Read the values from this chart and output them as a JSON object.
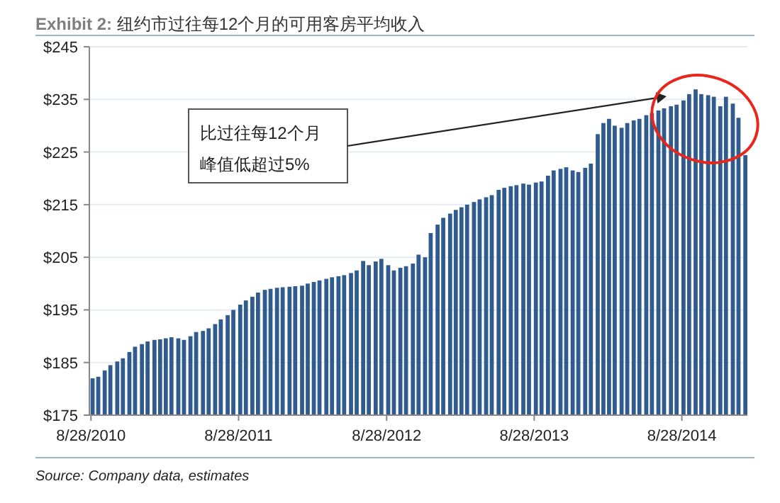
{
  "chart_data": {
    "type": "bar",
    "title": "**Exhibit 2:** 纽约市过往每12个月的可用客房平均收入",
    "x": [
      "2010-09-01",
      "2010-09-15",
      "2010-10-01",
      "2010-10-15",
      "2010-11-01",
      "2010-11-15",
      "2010-12-01",
      "2010-12-15",
      "2011-01-01",
      "2011-01-15",
      "2011-02-01",
      "2011-02-15",
      "2011-03-01",
      "2011-03-15",
      "2011-04-01",
      "2011-04-15",
      "2011-05-01",
      "2011-05-15",
      "2011-06-01",
      "2011-06-15",
      "2011-07-01",
      "2011-07-15",
      "2011-08-01",
      "2011-08-15",
      "2011-09-01",
      "2011-09-15",
      "2011-10-01",
      "2011-10-15",
      "2011-11-01",
      "2011-11-15",
      "2011-12-01",
      "2011-12-15",
      "2012-01-01",
      "2012-01-15",
      "2012-02-01",
      "2012-02-15",
      "2012-03-01",
      "2012-03-15",
      "2012-04-01",
      "2012-04-15",
      "2012-05-01",
      "2012-05-15",
      "2012-06-01",
      "2012-06-15",
      "2012-07-01",
      "2012-07-15",
      "2012-08-01",
      "2012-08-15",
      "2012-09-01",
      "2012-09-15",
      "2012-10-01",
      "2012-10-15",
      "2012-11-01",
      "2012-11-15",
      "2012-12-01",
      "2012-12-15",
      "2013-01-01",
      "2013-01-15",
      "2013-02-01",
      "2013-02-15",
      "2013-03-01",
      "2013-03-15",
      "2013-04-01",
      "2013-04-15",
      "2013-05-01",
      "2013-05-15",
      "2013-06-01",
      "2013-06-15",
      "2013-07-01",
      "2013-07-15",
      "2013-08-01",
      "2013-08-15",
      "2013-09-01",
      "2013-09-15",
      "2013-10-01",
      "2013-10-15",
      "2013-11-01",
      "2013-11-15",
      "2013-12-01",
      "2013-12-15",
      "2014-01-01",
      "2014-01-15",
      "2014-02-01",
      "2014-02-15",
      "2014-03-01",
      "2014-03-15",
      "2014-04-01",
      "2014-04-15",
      "2014-05-01",
      "2014-05-15",
      "2014-06-01",
      "2014-06-15",
      "2014-07-01",
      "2014-07-15",
      "2014-08-01",
      "2014-08-15",
      "2014-09-01",
      "2014-09-15",
      "2014-10-01",
      "2014-10-15",
      "2014-11-01",
      "2014-11-15",
      "2014-12-01",
      "2014-12-15",
      "2015-01-01",
      "2015-01-15",
      "2015-02-01"
    ],
    "values": [
      182,
      182.3,
      183.5,
      184.5,
      185.2,
      185.8,
      187,
      188,
      188.5,
      189,
      189.3,
      189.4,
      189.6,
      189.8,
      189.6,
      189.3,
      190,
      190.8,
      191,
      191.5,
      192.3,
      193.2,
      194,
      195,
      196,
      196.8,
      197.5,
      198.3,
      198.8,
      199,
      199.2,
      199.3,
      199.4,
      199.5,
      199.6,
      200,
      200.3,
      200.6,
      200.9,
      201.2,
      201.4,
      201.6,
      202,
      202.5,
      204.3,
      203.5,
      204.2,
      204.7,
      203.5,
      202.5,
      203,
      203.3,
      203.8,
      205.5,
      205,
      209.6,
      211.2,
      212.5,
      213.3,
      214,
      214.5,
      215,
      215.5,
      216,
      216.4,
      216.8,
      217.8,
      218.2,
      218.5,
      218.7,
      219,
      218.8,
      219.2,
      219.4,
      220.5,
      221.5,
      221.8,
      222.1,
      221.5,
      221.2,
      222,
      222.8,
      228.4,
      230.5,
      231.3,
      230,
      229.6,
      230.5,
      231,
      231.3,
      232,
      232.4,
      232.9,
      233.3,
      233.7,
      234,
      234.8,
      236,
      236.9,
      236,
      235.8,
      235.5,
      233.7,
      235.5,
      234.2,
      231.5,
      224.4
    ],
    "color": "#2f5b8e",
    "xlim": [
      "2010-08-24",
      "2015-02-06"
    ],
    "xticks": [
      {
        "value": "2010-08-28",
        "label": "8/28/2010"
      },
      {
        "value": "2011-08-28",
        "label": "8/28/2011"
      },
      {
        "value": "2012-08-28",
        "label": "8/28/2012"
      },
      {
        "value": "2013-08-28",
        "label": "8/28/2013"
      },
      {
        "value": "2014-08-28",
        "label": "8/28/2014"
      }
    ],
    "ylim": [
      175,
      245
    ],
    "yticks": [
      {
        "value": 175,
        "label": "$175"
      },
      {
        "value": 185,
        "label": "$185"
      },
      {
        "value": 195,
        "label": "$195"
      },
      {
        "value": 205,
        "label": "$205"
      },
      {
        "value": 215,
        "label": "$215"
      },
      {
        "value": 225,
        "label": "$225"
      },
      {
        "value": 235,
        "label": "$235"
      },
      {
        "value": 245,
        "label": "$245"
      }
    ],
    "grid": "y",
    "annotations": [
      "比过往每12个月峰值低超过5%",
      "Source: Company data, estimates"
    ]
  }
}
